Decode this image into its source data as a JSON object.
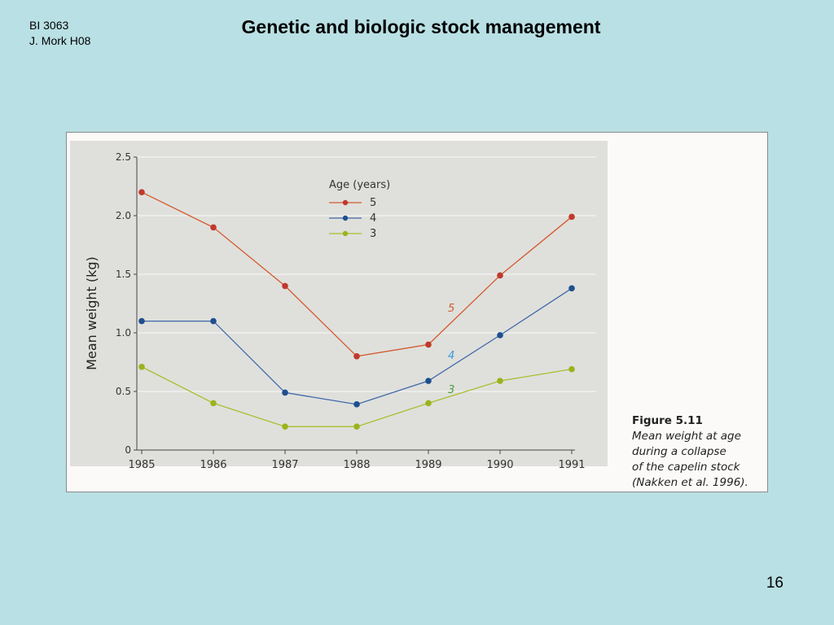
{
  "header": {
    "course_code": "BI 3063",
    "author": "J. Mork H08",
    "title": "Genetic and biologic stock management"
  },
  "footer": {
    "slide_number": "16"
  },
  "figure": {
    "label": "Figure 5.11",
    "caption_lines": [
      "Mean weight at age",
      "during a collapse",
      "of the capelin stock",
      "(Nakken et al. 1996)."
    ]
  },
  "chart_data": {
    "type": "line",
    "ylabel": "Mean weight (kg)",
    "xlabel": "",
    "x": [
      1985,
      1986,
      1987,
      1988,
      1989,
      1990,
      1991
    ],
    "x_tick_labels": [
      "1985",
      "1986",
      "1987",
      "1988",
      "1989",
      "1990",
      "1991"
    ],
    "ylim": [
      0,
      2.5
    ],
    "y_ticks": [
      0,
      0.5,
      1.0,
      1.5,
      2.0,
      2.5
    ],
    "y_tick_labels": [
      "0",
      "0.5",
      "1.0",
      "1.5",
      "2.0",
      "2.5"
    ],
    "grid": true,
    "legend": {
      "title": "Age (years)",
      "position": "top-center"
    },
    "series": [
      {
        "name": "5",
        "color": "#d4592e",
        "marker_color": "#c0392b",
        "values": [
          2.2,
          1.9,
          1.4,
          0.8,
          0.9,
          1.49,
          1.99
        ]
      },
      {
        "name": "4",
        "color": "#3f67a8",
        "marker_color": "#1e4f8f",
        "values": [
          1.1,
          1.1,
          0.49,
          0.39,
          0.59,
          0.98,
          1.38
        ]
      },
      {
        "name": "3",
        "color": "#a8bf2e",
        "marker_color": "#9ab31d",
        "values": [
          0.71,
          0.4,
          0.2,
          0.2,
          0.4,
          0.59,
          0.69
        ]
      }
    ],
    "annotations": [
      {
        "text": "5",
        "series": "5",
        "color": "#d4592e"
      },
      {
        "text": "4",
        "series": "4",
        "color": "#3d9ad6"
      },
      {
        "text": "3",
        "series": "3",
        "color": "#4a9e3a"
      }
    ]
  }
}
